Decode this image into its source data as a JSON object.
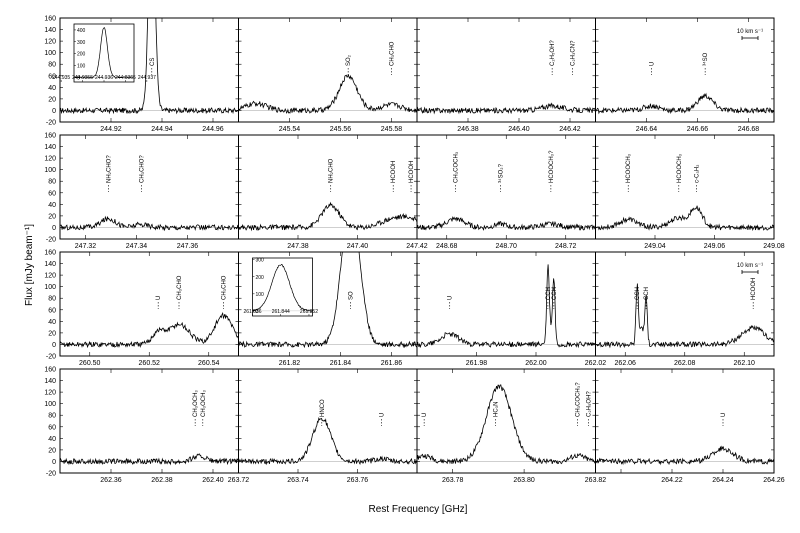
{
  "figure": {
    "xlabel": "Rest Frequency [GHz]",
    "ylabel": "Flux [mJy beam⁻¹]"
  },
  "chart_data": [
    {
      "type": "line",
      "row": 0,
      "col": 0,
      "xlim": [
        244.9,
        244.97
      ],
      "ylim": [
        -20,
        160
      ],
      "xticks": [
        244.92,
        244.94,
        244.96
      ],
      "lines": [
        {
          "label": "CS",
          "x": 244.936
        }
      ],
      "peaks": [
        {
          "x": 244.936,
          "w": 0.0012,
          "a": 400
        }
      ],
      "inset": {
        "xlim": [
          244.9353,
          244.9367
        ],
        "xticks": [
          "244.935",
          "244.9355",
          "244.936",
          "244.9365",
          "244.937"
        ],
        "xticklabels": [
          "244.935",
          "244.9355",
          "244.936",
          "244.9365",
          "244.937"
        ],
        "yticks": [
          0,
          100,
          200,
          300,
          400
        ],
        "ylim": [
          -40,
          450
        ],
        "peak": {
          "x": 244.936,
          "w": 8e-05,
          "a": 420
        }
      }
    },
    {
      "type": "line",
      "row": 0,
      "col": 1,
      "xlim": [
        245.52,
        245.59
      ],
      "ylim": [
        -20,
        160
      ],
      "xticks": [
        245.54,
        245.56,
        245.58
      ],
      "lines": [
        {
          "label": "SO₂",
          "x": 245.563
        },
        {
          "label": "CH₃CHO",
          "x": 245.58
        }
      ],
      "peaks": [
        {
          "x": 245.563,
          "w": 0.0035,
          "a": 60
        },
        {
          "x": 245.527,
          "w": 0.004,
          "a": 12
        },
        {
          "x": 245.58,
          "w": 0.004,
          "a": 10
        }
      ]
    },
    {
      "type": "line",
      "row": 0,
      "col": 2,
      "xlim": [
        246.36,
        246.43
      ],
      "ylim": [
        -20,
        160
      ],
      "xticks": [
        246.38,
        246.4,
        246.42
      ],
      "lines": [
        {
          "label": "C₂H₅OH?",
          "x": 246.413
        },
        {
          "label": "C₂H₃CN?",
          "x": 246.421
        }
      ],
      "peaks": [
        {
          "x": 246.413,
          "w": 0.004,
          "a": 8
        }
      ]
    },
    {
      "type": "line",
      "row": 0,
      "col": 3,
      "xlim": [
        246.62,
        246.69
      ],
      "ylim": [
        -20,
        160
      ],
      "xticks": [
        246.64,
        246.66,
        246.68
      ],
      "lines": [
        {
          "label": "U",
          "x": 246.642
        },
        {
          "label": "³⁴SO",
          "x": 246.663
        }
      ],
      "peaks": [
        {
          "x": 246.663,
          "w": 0.003,
          "a": 25
        },
        {
          "x": 246.642,
          "w": 0.003,
          "a": 8
        }
      ],
      "scalebar": "10 km s⁻¹"
    },
    {
      "type": "line",
      "row": 1,
      "col": 0,
      "xlim": [
        247.31,
        247.38
      ],
      "ylim": [
        -20,
        160
      ],
      "xticks": [
        247.32,
        247.34,
        247.36
      ],
      "lines": [
        {
          "label": "NH₂CHO?",
          "x": 247.329
        },
        {
          "label": "CH₃CHO?",
          "x": 247.342
        }
      ],
      "peaks": [
        {
          "x": 247.329,
          "w": 0.003,
          "a": 15
        },
        {
          "x": 247.342,
          "w": 0.003,
          "a": 5
        }
      ]
    },
    {
      "type": "line",
      "row": 1,
      "col": 1,
      "xlim": [
        247.36,
        247.42
      ],
      "ylim": [
        -20,
        160
      ],
      "xticks": [
        247.38,
        247.4,
        247.42
      ],
      "lines": [
        {
          "label": "NH₂CHO",
          "x": 247.391
        },
        {
          "label": "HCOOH",
          "x": 247.412
        },
        {
          "label": "HCOOH",
          "x": 247.418
        }
      ],
      "peaks": [
        {
          "x": 247.391,
          "w": 0.003,
          "a": 38
        },
        {
          "x": 247.412,
          "w": 0.004,
          "a": 15
        },
        {
          "x": 247.418,
          "w": 0.003,
          "a": 12
        }
      ]
    },
    {
      "type": "line",
      "row": 1,
      "col": 2,
      "xlim": [
        248.67,
        248.73
      ],
      "ylim": [
        -20,
        160
      ],
      "xticks": [
        248.68,
        248.7,
        248.72
      ],
      "lines": [
        {
          "label": "CH₃COCH₃",
          "x": 248.683
        },
        {
          "label": "³⁴SO₂?",
          "x": 248.698
        },
        {
          "label": "HCOOCH₃?",
          "x": 248.715
        }
      ],
      "peaks": [
        {
          "x": 248.683,
          "w": 0.003,
          "a": 15
        },
        {
          "x": 248.698,
          "w": 0.002,
          "a": 6
        },
        {
          "x": 248.715,
          "w": 0.003,
          "a": 6
        }
      ]
    },
    {
      "type": "line",
      "row": 1,
      "col": 3,
      "xlim": [
        249.02,
        249.08
      ],
      "ylim": [
        -20,
        160
      ],
      "xticks": [
        249.04,
        249.06,
        249.08
      ],
      "lines": [
        {
          "label": "HCOOCH₃",
          "x": 249.031
        },
        {
          "label": "HCOOCH₃",
          "x": 249.048
        },
        {
          "label": "c-C₃H₂",
          "x": 249.054
        }
      ],
      "peaks": [
        {
          "x": 249.031,
          "w": 0.003,
          "a": 14
        },
        {
          "x": 249.048,
          "w": 0.003,
          "a": 16
        },
        {
          "x": 249.054,
          "w": 0.002,
          "a": 32
        }
      ]
    },
    {
      "type": "line",
      "row": 2,
      "col": 0,
      "xlim": [
        260.49,
        260.55
      ],
      "ylim": [
        -20,
        160
      ],
      "xticks": [
        260.5,
        260.52,
        260.54
      ],
      "lines": [
        {
          "label": "U",
          "x": 260.523
        },
        {
          "label": "CH₃CHO",
          "x": 260.53
        },
        {
          "label": "CH₃CHO",
          "x": 260.545
        }
      ],
      "peaks": [
        {
          "x": 260.523,
          "w": 0.002,
          "a": 20
        },
        {
          "x": 260.53,
          "w": 0.0035,
          "a": 35
        },
        {
          "x": 260.545,
          "w": 0.003,
          "a": 50
        }
      ]
    },
    {
      "type": "line",
      "row": 2,
      "col": 1,
      "xlim": [
        261.8,
        261.87
      ],
      "ylim": [
        -20,
        160
      ],
      "xticks": [
        261.82,
        261.84,
        261.86
      ],
      "lines": [
        {
          "label": "SO",
          "x": 261.844
        }
      ],
      "peaks": [
        {
          "x": 261.844,
          "w": 0.0035,
          "a": 250
        }
      ],
      "inset": {
        "xlim": [
          261.836,
          261.853
        ],
        "xticks": [
          261.836,
          261.844,
          261.852
        ],
        "xticklabels": [
          "261.836",
          "261.844",
          "261.852"
        ],
        "yticks": [
          0,
          100,
          200,
          300
        ],
        "ylim": [
          -30,
          310
        ],
        "peak": {
          "x": 261.844,
          "w": 0.0025,
          "a": 270
        }
      }
    },
    {
      "type": "line",
      "row": 2,
      "col": 2,
      "xlim": [
        261.96,
        262.02
      ],
      "ylim": [
        -20,
        160
      ],
      "xticks": [
        261.98,
        262.0,
        262.02
      ],
      "lines": [
        {
          "label": "U",
          "x": 261.971
        },
        {
          "label": "CCH",
          "x": 262.004
        },
        {
          "label": "CCH",
          "x": 262.006
        }
      ],
      "peaks": [
        {
          "x": 261.971,
          "w": 0.003,
          "a": 18
        },
        {
          "x": 262.004,
          "w": 0.0004,
          "a": 115
        },
        {
          "x": 262.006,
          "w": 0.0004,
          "a": 110
        },
        {
          "x": 262.0046,
          "w": 0.0008,
          "a": 30
        }
      ]
    },
    {
      "type": "line",
      "row": 2,
      "col": 3,
      "xlim": [
        262.05,
        262.11
      ],
      "ylim": [
        -20,
        160
      ],
      "xticks": [
        262.06,
        262.08,
        262.1
      ],
      "lines": [
        {
          "label": "CCH",
          "x": 262.064
        },
        {
          "label": "CCH",
          "x": 262.067
        },
        {
          "label": "HCOOH",
          "x": 262.103
        }
      ],
      "peaks": [
        {
          "x": 262.064,
          "w": 0.0004,
          "a": 100
        },
        {
          "x": 262.067,
          "w": 0.0004,
          "a": 80
        },
        {
          "x": 262.0655,
          "w": 0.0007,
          "a": 30
        },
        {
          "x": 262.103,
          "w": 0.004,
          "a": 28
        }
      ],
      "scalebar": "10 km s⁻¹"
    },
    {
      "type": "line",
      "row": 3,
      "col": 0,
      "xlim": [
        262.34,
        262.41
      ],
      "ylim": [
        -20,
        160
      ],
      "xticks": [
        262.36,
        262.38,
        262.4
      ],
      "lines": [
        {
          "label": "CH₃OCH₃",
          "x": 262.393
        },
        {
          "label": "CH₃OCH₃",
          "x": 262.396
        }
      ],
      "peaks": [
        {
          "x": 262.393,
          "w": 0.002,
          "a": 6
        },
        {
          "x": 262.396,
          "w": 0.002,
          "a": 6
        }
      ]
    },
    {
      "type": "line",
      "row": 3,
      "col": 1,
      "xlim": [
        263.72,
        263.78
      ],
      "ylim": [
        -20,
        160
      ],
      "xticks": [
        263.72,
        263.74,
        263.76
      ],
      "lines": [
        {
          "label": "HNCO",
          "x": 263.748
        },
        {
          "label": "U",
          "x": 263.768
        }
      ],
      "peaks": [
        {
          "x": 263.748,
          "w": 0.003,
          "a": 75
        },
        {
          "x": 263.768,
          "w": 0.002,
          "a": 5
        }
      ]
    },
    {
      "type": "line",
      "row": 3,
      "col": 2,
      "xlim": [
        263.77,
        263.82
      ],
      "ylim": [
        -20,
        160
      ],
      "xticks": [
        263.78,
        263.8,
        263.82
      ],
      "lines": [
        {
          "label": "U",
          "x": 263.772
        },
        {
          "label": "HC₃N",
          "x": 263.792
        },
        {
          "label": "CH₃COCH₃?",
          "x": 263.815
        },
        {
          "label": "C₂H₅OH?",
          "x": 263.818
        }
      ],
      "peaks": [
        {
          "x": 263.772,
          "w": 0.002,
          "a": 10
        },
        {
          "x": 263.793,
          "w": 0.0035,
          "a": 130
        },
        {
          "x": 263.815,
          "w": 0.002,
          "a": 10
        }
      ]
    },
    {
      "type": "line",
      "row": 3,
      "col": 3,
      "xlim": [
        264.19,
        264.26
      ],
      "ylim": [
        -20,
        160
      ],
      "xticks": [
        264.2,
        264.22,
        264.24,
        264.26
      ],
      "xticklabels": [
        "",
        "264.22",
        "264.24",
        "264.26"
      ],
      "lines": [
        {
          "label": "U",
          "x": 264.24
        }
      ],
      "peaks": [
        {
          "x": 264.24,
          "w": 0.004,
          "a": 22
        }
      ]
    }
  ]
}
